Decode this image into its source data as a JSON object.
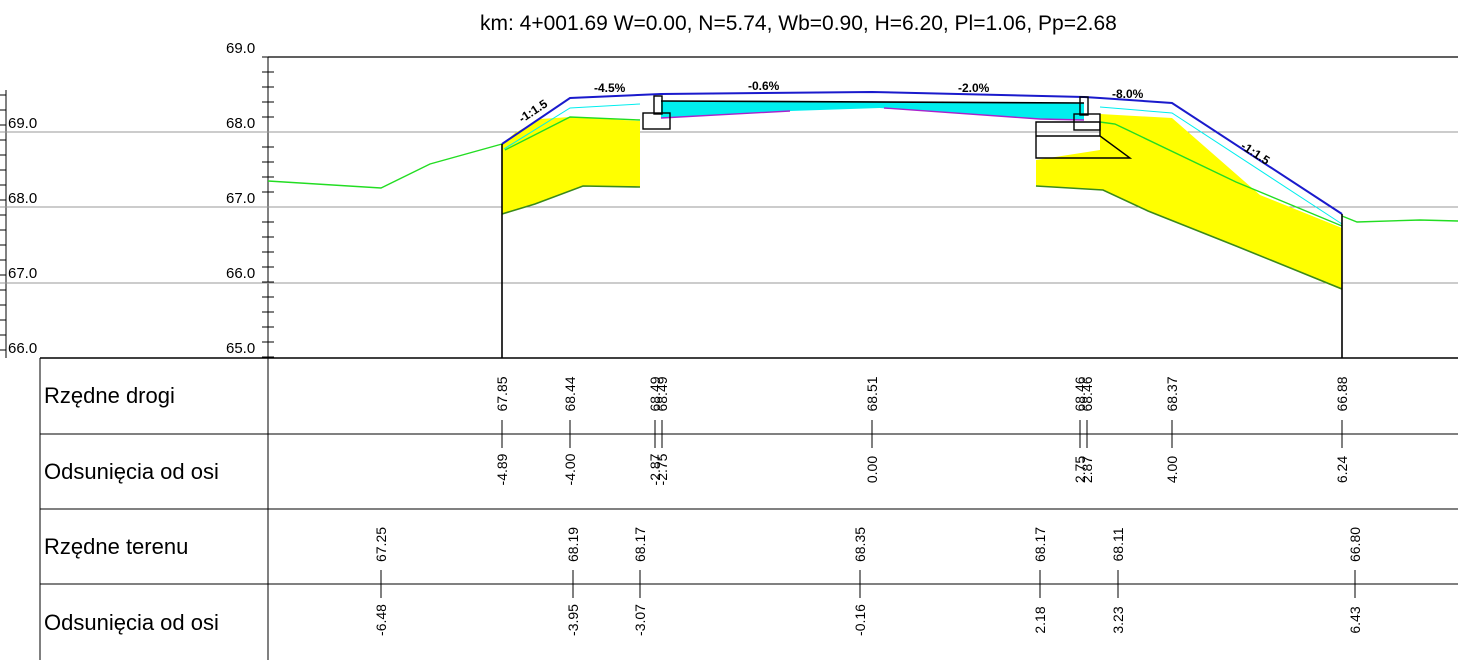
{
  "title": "km: 4+001.69  W=0.00,  N=5.74,  Wb=0.90,  H=6.20,  Pl=1.06,  Pp=2.68",
  "left_scale_labels": [
    "69.0",
    "68.0",
    "67.0",
    "66.0"
  ],
  "main_scale_labels": [
    "69.0",
    "68.0",
    "67.0",
    "66.0",
    "65.0"
  ],
  "slope_labels": [
    "-4.5%",
    "-0.6%",
    "-2.0%",
    "-8.0%",
    "-1:1.5",
    "-1:1.5"
  ],
  "colors": {
    "road": "#1a1acc",
    "terrain": "#22dd22",
    "fill_yellow": "#ffff00",
    "pavement_cyan": "#00eeee",
    "sub_terrain": "#3a8a1a",
    "layer_purple": "#aa22cc",
    "grid": "#999999"
  },
  "table": {
    "rows": [
      {
        "label": "Rzędne drogi",
        "values": [
          "67.85",
          "68.44",
          "68.49",
          "68.49",
          "68.51",
          "68.46",
          "68.46",
          "68.37",
          "66.88"
        ]
      },
      {
        "label": "Odsunięcia od osi",
        "values": [
          "-4.89",
          "-4.00",
          "-2.87",
          "-2.75",
          "0.00",
          "2.75",
          "2.87",
          "4.00",
          "6.24"
        ]
      },
      {
        "label": "Rzędne terenu",
        "values": [
          "67.25",
          "68.19",
          "68.17",
          "68.35",
          "68.17",
          "68.11",
          "66.80"
        ]
      },
      {
        "label": "Odsunięcia od osi",
        "values": [
          "-6.48",
          "-3.95",
          "-3.07",
          "-0.16",
          "2.18",
          "3.23",
          "6.43"
        ]
      }
    ]
  }
}
